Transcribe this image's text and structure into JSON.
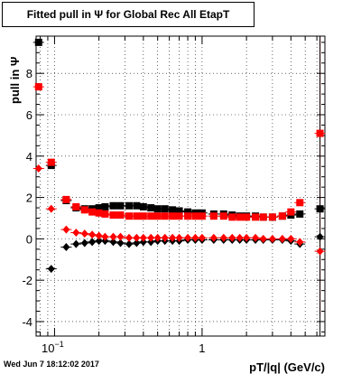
{
  "title": "Fitted pull in  Ψ  for Global Rec All EtapT",
  "footer_timestamp": "Wed Jun  7 18:12:02 2017",
  "chart_data": {
    "type": "scatter",
    "title": "Fitted pull in  Ψ  for Global Rec All EtapT",
    "xlabel": "pT/|q| (GeV/c)",
    "ylabel": "pull in  Ψ",
    "x_scale": "log",
    "xlim": [
      0.075,
      6.8
    ],
    "ylim": [
      -4.7,
      9.8
    ],
    "grid": true,
    "x_tick_labels": [
      "10^-1",
      "1"
    ],
    "y_tick_labels": [
      "-4",
      "-2",
      "0",
      "2",
      "4",
      "6",
      "8"
    ],
    "colors": {
      "black": "#000000",
      "red": "#ff0000"
    },
    "series": [
      {
        "color": "#000000",
        "marker": "square",
        "points": [
          {
            "x": 0.078,
            "y": 9.5
          },
          {
            "x": 0.095,
            "y": 3.55
          },
          {
            "x": 0.12,
            "y": 1.85
          },
          {
            "x": 0.14,
            "y": 1.5
          },
          {
            "x": 0.16,
            "y": 1.45
          },
          {
            "x": 0.18,
            "y": 1.45
          },
          {
            "x": 0.2,
            "y": 1.5
          },
          {
            "x": 0.22,
            "y": 1.55
          },
          {
            "x": 0.25,
            "y": 1.6
          },
          {
            "x": 0.28,
            "y": 1.6
          },
          {
            "x": 0.32,
            "y": 1.6
          },
          {
            "x": 0.36,
            "y": 1.6
          },
          {
            "x": 0.4,
            "y": 1.55
          },
          {
            "x": 0.45,
            "y": 1.5
          },
          {
            "x": 0.5,
            "y": 1.45
          },
          {
            "x": 0.56,
            "y": 1.45
          },
          {
            "x": 0.63,
            "y": 1.4
          },
          {
            "x": 0.7,
            "y": 1.35
          },
          {
            "x": 0.8,
            "y": 1.3
          },
          {
            "x": 0.9,
            "y": 1.25
          },
          {
            "x": 1.0,
            "y": 1.25
          },
          {
            "x": 1.2,
            "y": 1.2
          },
          {
            "x": 1.4,
            "y": 1.2
          },
          {
            "x": 1.6,
            "y": 1.15
          },
          {
            "x": 1.8,
            "y": 1.1
          },
          {
            "x": 2.0,
            "y": 1.1
          },
          {
            "x": 2.3,
            "y": 1.1
          },
          {
            "x": 2.6,
            "y": 1.05
          },
          {
            "x": 3.0,
            "y": 1.05
          },
          {
            "x": 3.5,
            "y": 1.1
          },
          {
            "x": 4.0,
            "y": 1.15
          },
          {
            "x": 4.6,
            "y": 1.2
          },
          {
            "x": 6.3,
            "y": 1.45
          }
        ]
      },
      {
        "color": "#ff0000",
        "marker": "square",
        "points": [
          {
            "x": 0.078,
            "y": 7.35
          },
          {
            "x": 0.095,
            "y": 3.7
          },
          {
            "x": 0.12,
            "y": 1.9
          },
          {
            "x": 0.14,
            "y": 1.55
          },
          {
            "x": 0.16,
            "y": 1.4
          },
          {
            "x": 0.18,
            "y": 1.3
          },
          {
            "x": 0.2,
            "y": 1.25
          },
          {
            "x": 0.22,
            "y": 1.2
          },
          {
            "x": 0.25,
            "y": 1.15
          },
          {
            "x": 0.28,
            "y": 1.15
          },
          {
            "x": 0.32,
            "y": 1.1
          },
          {
            "x": 0.36,
            "y": 1.1
          },
          {
            "x": 0.4,
            "y": 1.1
          },
          {
            "x": 0.45,
            "y": 1.1
          },
          {
            "x": 0.5,
            "y": 1.1
          },
          {
            "x": 0.56,
            "y": 1.1
          },
          {
            "x": 0.63,
            "y": 1.1
          },
          {
            "x": 0.7,
            "y": 1.1
          },
          {
            "x": 0.8,
            "y": 1.1
          },
          {
            "x": 0.9,
            "y": 1.1
          },
          {
            "x": 1.0,
            "y": 1.1
          },
          {
            "x": 1.2,
            "y": 1.1
          },
          {
            "x": 1.4,
            "y": 1.1
          },
          {
            "x": 1.6,
            "y": 1.05
          },
          {
            "x": 1.8,
            "y": 1.05
          },
          {
            "x": 2.0,
            "y": 1.05
          },
          {
            "x": 2.3,
            "y": 1.05
          },
          {
            "x": 2.6,
            "y": 1.05
          },
          {
            "x": 3.0,
            "y": 1.05
          },
          {
            "x": 3.5,
            "y": 1.1
          },
          {
            "x": 4.0,
            "y": 1.3
          },
          {
            "x": 4.6,
            "y": 1.75
          },
          {
            "x": 6.3,
            "y": 5.1
          }
        ]
      },
      {
        "color": "#000000",
        "marker": "diamond",
        "points": [
          {
            "x": 0.095,
            "y": -1.45
          },
          {
            "x": 0.12,
            "y": -0.4
          },
          {
            "x": 0.14,
            "y": -0.25
          },
          {
            "x": 0.16,
            "y": -0.2
          },
          {
            "x": 0.18,
            "y": -0.15
          },
          {
            "x": 0.2,
            "y": -0.1
          },
          {
            "x": 0.22,
            "y": -0.1
          },
          {
            "x": 0.25,
            "y": -0.15
          },
          {
            "x": 0.28,
            "y": -0.2
          },
          {
            "x": 0.32,
            "y": -0.25
          },
          {
            "x": 0.36,
            "y": -0.2
          },
          {
            "x": 0.4,
            "y": -0.15
          },
          {
            "x": 0.45,
            "y": -0.15
          },
          {
            "x": 0.5,
            "y": -0.1
          },
          {
            "x": 0.56,
            "y": -0.1
          },
          {
            "x": 0.63,
            "y": -0.1
          },
          {
            "x": 0.7,
            "y": -0.1
          },
          {
            "x": 0.8,
            "y": -0.05
          },
          {
            "x": 0.9,
            "y": -0.05
          },
          {
            "x": 1.0,
            "y": -0.05
          },
          {
            "x": 1.2,
            "y": -0.05
          },
          {
            "x": 1.4,
            "y": -0.05
          },
          {
            "x": 1.6,
            "y": -0.05
          },
          {
            "x": 1.8,
            "y": -0.05
          },
          {
            "x": 2.0,
            "y": -0.05
          },
          {
            "x": 2.3,
            "y": -0.05
          },
          {
            "x": 2.6,
            "y": -0.05
          },
          {
            "x": 3.0,
            "y": -0.05
          },
          {
            "x": 3.5,
            "y": -0.05
          },
          {
            "x": 4.0,
            "y": -0.1
          },
          {
            "x": 4.6,
            "y": -0.25
          },
          {
            "x": 6.3,
            "y": 0.1
          }
        ]
      },
      {
        "color": "#ff0000",
        "marker": "diamond",
        "points": [
          {
            "x": 0.078,
            "y": 3.4
          },
          {
            "x": 0.095,
            "y": 1.45
          },
          {
            "x": 0.12,
            "y": 0.45
          },
          {
            "x": 0.14,
            "y": 0.3
          },
          {
            "x": 0.16,
            "y": 0.25
          },
          {
            "x": 0.18,
            "y": 0.2
          },
          {
            "x": 0.2,
            "y": 0.15
          },
          {
            "x": 0.22,
            "y": 0.1
          },
          {
            "x": 0.25,
            "y": 0.1
          },
          {
            "x": 0.28,
            "y": 0.1
          },
          {
            "x": 0.32,
            "y": 0.05
          },
          {
            "x": 0.36,
            "y": 0.05
          },
          {
            "x": 0.4,
            "y": 0.05
          },
          {
            "x": 0.45,
            "y": 0.05
          },
          {
            "x": 0.5,
            "y": 0.05
          },
          {
            "x": 0.56,
            "y": 0.05
          },
          {
            "x": 0.63,
            "y": 0.05
          },
          {
            "x": 0.7,
            "y": 0.05
          },
          {
            "x": 0.8,
            "y": 0.05
          },
          {
            "x": 0.9,
            "y": 0.05
          },
          {
            "x": 1.0,
            "y": 0.05
          },
          {
            "x": 1.2,
            "y": 0.05
          },
          {
            "x": 1.4,
            "y": 0.05
          },
          {
            "x": 1.6,
            "y": 0.05
          },
          {
            "x": 1.8,
            "y": 0.05
          },
          {
            "x": 2.0,
            "y": 0.05
          },
          {
            "x": 2.3,
            "y": 0.05
          },
          {
            "x": 2.6,
            "y": 0.0
          },
          {
            "x": 3.0,
            "y": 0.0
          },
          {
            "x": 3.5,
            "y": 0.0
          },
          {
            "x": 4.0,
            "y": 0.0
          },
          {
            "x": 4.6,
            "y": -0.15
          },
          {
            "x": 6.3,
            "y": -0.6
          }
        ]
      }
    ],
    "error_bars": [
      {
        "color": "#ff0000",
        "x": 6.3,
        "y_low": -3.7,
        "y_high": 9.8
      },
      {
        "color": "#000000",
        "x": 6.3,
        "y_low": -4.7,
        "y_high": 9.8
      }
    ]
  }
}
